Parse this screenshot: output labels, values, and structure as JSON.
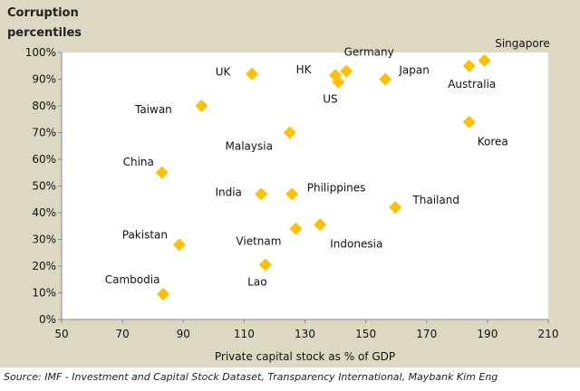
{
  "chart_data": {
    "type": "scatter",
    "ylabel": "Corruption percentiles",
    "xlabel": "Private capital stock as % of GDP",
    "source": "Source: IMF - Investment and Capital Stock Dataset, Transparency International, Maybank Kim Eng",
    "xlim": [
      50,
      210
    ],
    "ylim": [
      0,
      100
    ],
    "xticks": [
      "50",
      "70",
      "90",
      "110",
      "130",
      "150",
      "170",
      "190",
      "210"
    ],
    "yticks": [
      "0%",
      "10%",
      "20%",
      "30%",
      "40%",
      "50%",
      "60%",
      "70%",
      "80%",
      "90%",
      "100%"
    ],
    "grid": false,
    "marker_color": "#FFC000",
    "points": [
      {
        "label": "UK",
        "x": 112.6,
        "y": 92
      },
      {
        "label": "HK",
        "x": 140,
        "y": 91.5
      },
      {
        "label": "US",
        "x": 141,
        "y": 89
      },
      {
        "label": "Germany",
        "x": 143.6,
        "y": 93
      },
      {
        "label": "Japan",
        "x": 156.4,
        "y": 90
      },
      {
        "label": "Australia",
        "x": 184,
        "y": 95
      },
      {
        "label": "Singapore",
        "x": 189,
        "y": 97
      },
      {
        "label": "Korea",
        "x": 184,
        "y": 74
      },
      {
        "label": "Taiwan",
        "x": 96,
        "y": 80
      },
      {
        "label": "Malaysia",
        "x": 125,
        "y": 70
      },
      {
        "label": "China",
        "x": 83,
        "y": 55
      },
      {
        "label": "India",
        "x": 115.6,
        "y": 47
      },
      {
        "label": "Philippines",
        "x": 125.7,
        "y": 47
      },
      {
        "label": "Thailand",
        "x": 159.7,
        "y": 42
      },
      {
        "label": "Indonesia",
        "x": 135,
        "y": 35.5
      },
      {
        "label": "Vietnam",
        "x": 127,
        "y": 34
      },
      {
        "label": "Pakistan",
        "x": 88.7,
        "y": 28
      },
      {
        "label": "Lao",
        "x": 117,
        "y": 20.5
      },
      {
        "label": "Cambodia",
        "x": 83.4,
        "y": 9.5
      }
    ]
  }
}
